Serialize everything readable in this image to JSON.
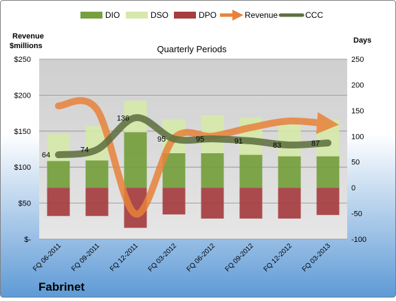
{
  "company": "Fabrinet",
  "chart_data": {
    "type": "bar",
    "title": "Quarterly Periods",
    "left_axis_label": "Revenue $millions",
    "right_axis_label": "Days",
    "categories": [
      "FQ 06-2011",
      "FQ 09-2011",
      "FQ 12-2011",
      "FQ 03-2012",
      "FQ 06-2012",
      "FQ 09-2012",
      "FQ 12-2012",
      "FQ 03-2013"
    ],
    "left_axis": {
      "min": 0,
      "max": 250,
      "ticks": [
        "$-",
        "$50",
        "$100",
        "$150",
        "$200",
        "$250"
      ]
    },
    "right_axis": {
      "min": -100,
      "max": 250,
      "ticks": [
        "-100",
        "-50",
        "0",
        "50",
        "100",
        "150",
        "200",
        "250"
      ]
    },
    "grid": true,
    "legend_position": "top",
    "series": [
      {
        "name": "DIO",
        "kind": "bar",
        "axis": "days",
        "color": "#77A040",
        "values": [
          52,
          53,
          108,
          67,
          67,
          64,
          61,
          61
        ]
      },
      {
        "name": "DSO",
        "kind": "bar",
        "axis": "days",
        "color": "#D6E9A9",
        "values": [
          52,
          67,
          61,
          66,
          74,
          72,
          62,
          71
        ]
      },
      {
        "name": "DPO",
        "kind": "bar",
        "axis": "days",
        "color": "#A63D40",
        "values": [
          -55,
          -55,
          -78,
          -52,
          -60,
          -60,
          -60,
          -53
        ]
      },
      {
        "name": "Revenue",
        "kind": "line",
        "axis": "revenue",
        "color": "#E8823A",
        "values": [
          185,
          180,
          35,
          140,
          143,
          155,
          164,
          160
        ]
      },
      {
        "name": "CCC",
        "kind": "line",
        "axis": "days",
        "color": "#5E7040",
        "values": [
          64,
          74,
          136,
          95,
          95,
          91,
          83,
          87
        ]
      }
    ],
    "data_labels": [
      "64",
      "74",
      "136",
      "95",
      "95",
      "91",
      "83",
      "87"
    ]
  },
  "colors": {
    "plot_background": "#D8D8D8",
    "page_top": "#FFFFFF",
    "page_bottom": "#5E9AD6",
    "gridline": "#8C8C8C"
  }
}
